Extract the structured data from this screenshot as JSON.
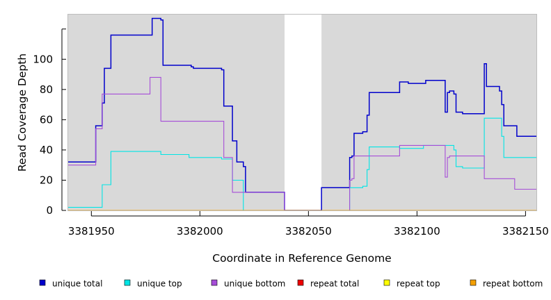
{
  "chart_data": {
    "type": "line",
    "step": true,
    "xlabel": "Coordinate in Reference Genome",
    "ylabel": "Read Coverage Depth",
    "xlim": [
      3381939,
      3382155
    ],
    "ylim": [
      0,
      130
    ],
    "x_ticks": [
      3381950,
      3382000,
      3382050,
      3382100,
      3382150
    ],
    "x_tick_labels": [
      "3381950",
      "3382000",
      "3382050",
      "3382100",
      "3382150"
    ],
    "y_ticks": [
      0,
      20,
      40,
      60,
      80,
      100,
      120
    ],
    "y_tick_labels": [
      "0",
      "20",
      "40",
      "60",
      "80",
      "100",
      ""
    ],
    "background": "#d9d9d9",
    "gap_region": [
      3382039,
      3382056
    ],
    "legend_placement": "bottom",
    "series": [
      {
        "name": "unique total",
        "color": "#0000cc",
        "points": [
          [
            3381939,
            32
          ],
          [
            3381952,
            32
          ],
          [
            3381952,
            56
          ],
          [
            3381955,
            56
          ],
          [
            3381955,
            71
          ],
          [
            3381956,
            71
          ],
          [
            3381956,
            94
          ],
          [
            3381959,
            94
          ],
          [
            3381959,
            116
          ],
          [
            3381978,
            116
          ],
          [
            3381978,
            127
          ],
          [
            3381982,
            127
          ],
          [
            3381982,
            126
          ],
          [
            3381983,
            126
          ],
          [
            3381983,
            96
          ],
          [
            3381996,
            96
          ],
          [
            3381996,
            95
          ],
          [
            3381997,
            95
          ],
          [
            3381997,
            94
          ],
          [
            3382010,
            94
          ],
          [
            3382010,
            93
          ],
          [
            3382011,
            93
          ],
          [
            3382011,
            69
          ],
          [
            3382015,
            69
          ],
          [
            3382015,
            46
          ],
          [
            3382017,
            46
          ],
          [
            3382017,
            32
          ],
          [
            3382020,
            32
          ],
          [
            3382020,
            29
          ],
          [
            3382021,
            29
          ],
          [
            3382021,
            12
          ],
          [
            3382039,
            12
          ],
          [
            3382039,
            0
          ],
          [
            3382056,
            0
          ],
          [
            3382056,
            15
          ],
          [
            3382069,
            15
          ],
          [
            3382069,
            35
          ],
          [
            3382070,
            35
          ],
          [
            3382070,
            36
          ],
          [
            3382071,
            36
          ],
          [
            3382071,
            51
          ],
          [
            3382075,
            51
          ],
          [
            3382075,
            52
          ],
          [
            3382077,
            52
          ],
          [
            3382077,
            63
          ],
          [
            3382078,
            63
          ],
          [
            3382078,
            78
          ],
          [
            3382092,
            78
          ],
          [
            3382092,
            85
          ],
          [
            3382096,
            85
          ],
          [
            3382096,
            84
          ],
          [
            3382104,
            84
          ],
          [
            3382104,
            86
          ],
          [
            3382113,
            86
          ],
          [
            3382113,
            65
          ],
          [
            3382114,
            65
          ],
          [
            3382114,
            78
          ],
          [
            3382115,
            78
          ],
          [
            3382115,
            79
          ],
          [
            3382117,
            79
          ],
          [
            3382117,
            77
          ],
          [
            3382118,
            77
          ],
          [
            3382118,
            65
          ],
          [
            3382121,
            65
          ],
          [
            3382121,
            64
          ],
          [
            3382131,
            64
          ],
          [
            3382131,
            97
          ],
          [
            3382132,
            97
          ],
          [
            3382132,
            82
          ],
          [
            3382138,
            82
          ],
          [
            3382138,
            79
          ],
          [
            3382139,
            79
          ],
          [
            3382139,
            70
          ],
          [
            3382140,
            70
          ],
          [
            3382140,
            56
          ],
          [
            3382146,
            56
          ],
          [
            3382146,
            49
          ],
          [
            3382155,
            49
          ]
        ]
      },
      {
        "name": "unique top",
        "color": "#00e5e5",
        "points": [
          [
            3381939,
            2
          ],
          [
            3381955,
            2
          ],
          [
            3381955,
            17
          ],
          [
            3381959,
            17
          ],
          [
            3381959,
            39
          ],
          [
            3381982,
            39
          ],
          [
            3381982,
            37
          ],
          [
            3381995,
            37
          ],
          [
            3381995,
            35
          ],
          [
            3382010,
            35
          ],
          [
            3382010,
            34
          ],
          [
            3382015,
            34
          ],
          [
            3382015,
            20
          ],
          [
            3382020,
            20
          ],
          [
            3382020,
            0
          ],
          [
            3382069,
            0
          ],
          [
            3382069,
            15
          ],
          [
            3382075,
            15
          ],
          [
            3382075,
            16
          ],
          [
            3382077,
            16
          ],
          [
            3382077,
            27
          ],
          [
            3382078,
            27
          ],
          [
            3382078,
            42
          ],
          [
            3382092,
            42
          ],
          [
            3382092,
            41
          ],
          [
            3382103,
            41
          ],
          [
            3382103,
            43
          ],
          [
            3382117,
            43
          ],
          [
            3382117,
            40
          ],
          [
            3382118,
            40
          ],
          [
            3382118,
            29
          ],
          [
            3382121,
            29
          ],
          [
            3382121,
            28
          ],
          [
            3382131,
            28
          ],
          [
            3382131,
            61
          ],
          [
            3382139,
            61
          ],
          [
            3382139,
            49
          ],
          [
            3382140,
            49
          ],
          [
            3382140,
            35
          ],
          [
            3382155,
            35
          ]
        ]
      },
      {
        "name": "unique bottom",
        "color": "#a64dd8",
        "points": [
          [
            3381939,
            30
          ],
          [
            3381952,
            30
          ],
          [
            3381952,
            54
          ],
          [
            3381955,
            54
          ],
          [
            3381955,
            77
          ],
          [
            3381977,
            77
          ],
          [
            3381977,
            88
          ],
          [
            3381982,
            88
          ],
          [
            3381982,
            59
          ],
          [
            3382011,
            59
          ],
          [
            3382011,
            35
          ],
          [
            3382015,
            35
          ],
          [
            3382015,
            12
          ],
          [
            3382039,
            12
          ],
          [
            3382039,
            0
          ],
          [
            3382069,
            0
          ],
          [
            3382069,
            20
          ],
          [
            3382070,
            20
          ],
          [
            3382070,
            21
          ],
          [
            3382071,
            21
          ],
          [
            3382071,
            36
          ],
          [
            3382092,
            36
          ],
          [
            3382092,
            43
          ],
          [
            3382113,
            43
          ],
          [
            3382113,
            22
          ],
          [
            3382114,
            22
          ],
          [
            3382114,
            35
          ],
          [
            3382115,
            35
          ],
          [
            3382115,
            36
          ],
          [
            3382131,
            36
          ],
          [
            3382131,
            21
          ],
          [
            3382145,
            21
          ],
          [
            3382145,
            14
          ],
          [
            3382155,
            14
          ]
        ]
      },
      {
        "name": "repeat total",
        "color": "#ee0000",
        "points": [
          [
            3381939,
            0
          ],
          [
            3382155,
            0
          ]
        ]
      },
      {
        "name": "repeat top",
        "color": "#ffff00",
        "points": [
          [
            3381939,
            0
          ],
          [
            3382155,
            0
          ]
        ]
      },
      {
        "name": "repeat bottom",
        "color": "#f4a000",
        "points": [
          [
            3381939,
            0
          ],
          [
            3382155,
            0
          ]
        ]
      }
    ]
  }
}
